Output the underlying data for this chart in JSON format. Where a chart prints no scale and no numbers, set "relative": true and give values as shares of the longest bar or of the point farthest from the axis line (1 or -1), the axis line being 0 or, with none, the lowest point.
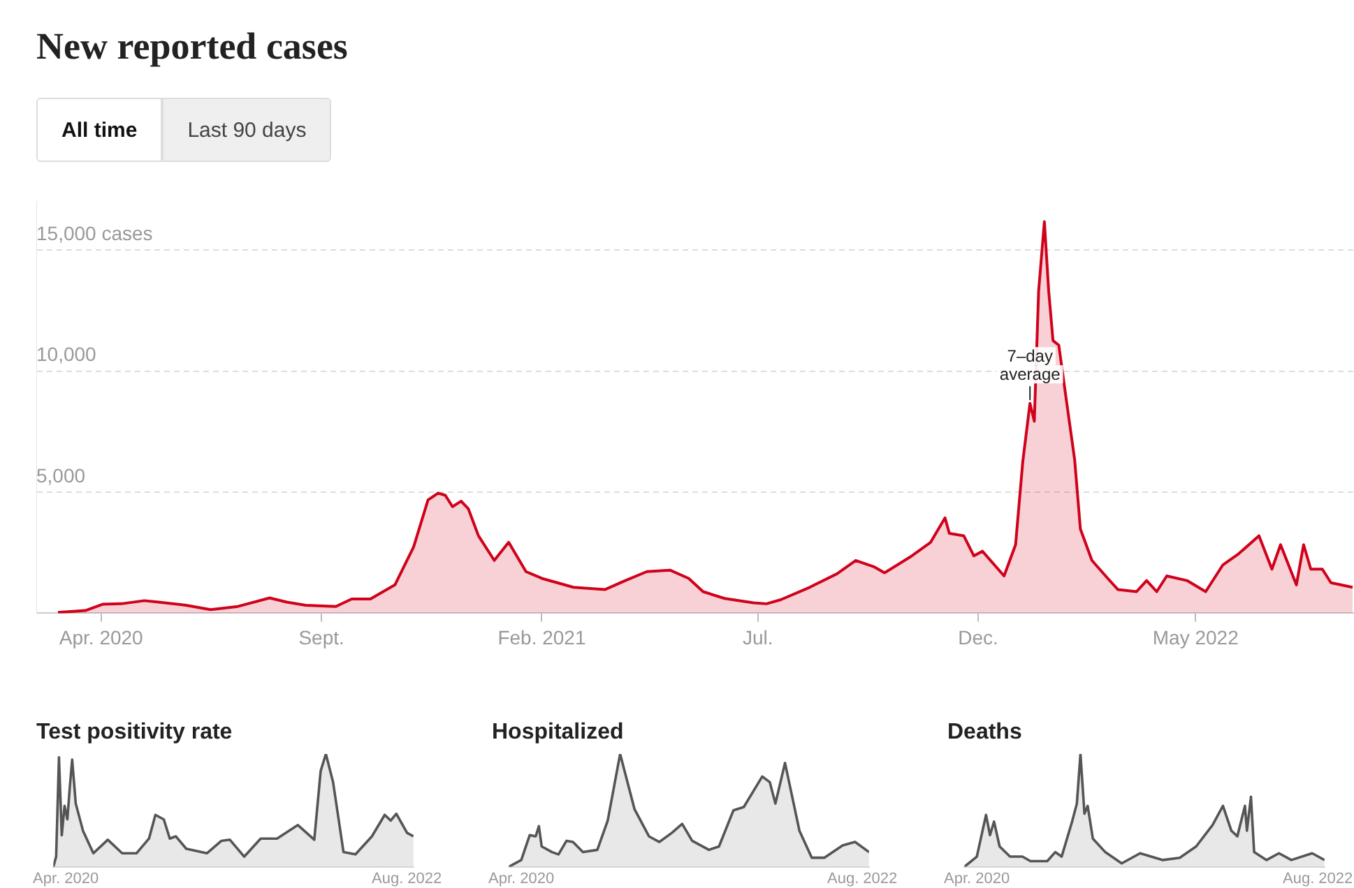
{
  "chart_data": [
    {
      "type": "area",
      "title": "New reported cases",
      "annotations": [
        "All time",
        "Last 90 days",
        {
          "text": "7–day average",
          "x": "2022-01-06",
          "y": 8800
        }
      ],
      "x": [
        "2020-03-02",
        "2020-03-21",
        "2020-04-02",
        "2020-04-15",
        "2020-05-01",
        "2020-05-11",
        "2020-05-30",
        "2020-06-16",
        "2020-07-05",
        "2020-07-27",
        "2020-08-08",
        "2020-08-21",
        "2020-09-11",
        "2020-09-22",
        "2020-10-05",
        "2020-10-22",
        "2020-11-04",
        "2020-11-14",
        "2020-11-21",
        "2020-11-26",
        "2020-12-01",
        "2020-12-07",
        "2020-12-12",
        "2020-12-19",
        "2020-12-30",
        "2021-01-09",
        "2021-01-21",
        "2021-02-01",
        "2021-02-23",
        "2021-03-17",
        "2021-03-31",
        "2021-04-15",
        "2021-05-01",
        "2021-05-14",
        "2021-05-24",
        "2021-06-08",
        "2021-06-28",
        "2021-07-07",
        "2021-07-17",
        "2021-08-06",
        "2021-08-25",
        "2021-09-07",
        "2021-09-20",
        "2021-09-27",
        "2021-10-16",
        "2021-10-29",
        "2021-11-08",
        "2021-11-11",
        "2021-11-21",
        "2021-11-28",
        "2021-12-04",
        "2021-12-19",
        "2021-12-27",
        "2022-01-01",
        "2022-01-06",
        "2022-01-09",
        "2022-01-12",
        "2022-01-16",
        "2022-01-19",
        "2022-01-22",
        "2022-01-26",
        "2022-02-01",
        "2022-02-06",
        "2022-02-10",
        "2022-02-18",
        "2022-03-01",
        "2022-03-08",
        "2022-03-21",
        "2022-03-28",
        "2022-04-04",
        "2022-04-11",
        "2022-04-25",
        "2022-05-08",
        "2022-05-20",
        "2022-05-31",
        "2022-06-14",
        "2022-06-23",
        "2022-06-29",
        "2022-07-10",
        "2022-07-15",
        "2022-07-20",
        "2022-07-28",
        "2022-08-03",
        "2022-08-18"
      ],
      "values": [
        30,
        110,
        370,
        390,
        520,
        460,
        330,
        150,
        280,
        630,
        460,
        330,
        280,
        590,
        590,
        1170,
        2740,
        4680,
        4960,
        4870,
        4400,
        4630,
        4310,
        3200,
        2180,
        2930,
        1720,
        1440,
        1070,
        980,
        1350,
        1720,
        1780,
        1440,
        890,
        610,
        430,
        390,
        560,
        1070,
        1630,
        2180,
        1910,
        1670,
        2370,
        2930,
        3940,
        3300,
        3200,
        2370,
        2560,
        1540,
        2830,
        6260,
        8670,
        7930,
        13300,
        16170,
        13300,
        11260,
        11070,
        8480,
        6350,
        3480,
        2180,
        1440,
        980,
        890,
        1350,
        890,
        1540,
        1350,
        890,
        2000,
        2460,
        3200,
        1820,
        2830,
        1170,
        2830,
        1820,
        1820,
        1260,
        1070
      ],
      "color": "#d0021b",
      "xlim": [
        "2020-02-16",
        "2022-08-19"
      ],
      "xticks": [
        {
          "value": "2020-04-01",
          "label": "Apr. 2020"
        },
        {
          "value": "2020-09-01",
          "label": "Sept."
        },
        {
          "value": "2021-02-01",
          "label": "Feb. 2021"
        },
        {
          "value": "2021-07-01",
          "label": "Jul."
        },
        {
          "value": "2021-12-01",
          "label": "Dec."
        },
        {
          "value": "2022-05-01",
          "label": "May 2022"
        }
      ],
      "ylim": [
        0,
        17000
      ],
      "yticks": [
        {
          "value": 5000,
          "label": "5,000"
        },
        {
          "value": 10000,
          "label": "10,000"
        },
        {
          "value": 15000,
          "label": "15,000 cases"
        }
      ],
      "grid": "y"
    },
    {
      "type": "area",
      "title": "Test positivity rate",
      "relative": true,
      "x": [
        "2020-03-01",
        "2020-03-08",
        "2020-03-15",
        "2020-03-22",
        "2020-03-29",
        "2020-04-05",
        "2020-04-11",
        "2020-04-17",
        "2020-04-26",
        "2020-05-14",
        "2020-06-09",
        "2020-07-15",
        "2020-08-20",
        "2020-09-25",
        "2020-10-26",
        "2020-11-11",
        "2020-12-02",
        "2020-12-17",
        "2021-01-01",
        "2021-01-27",
        "2021-03-20",
        "2021-04-25",
        "2021-05-16",
        "2021-06-21",
        "2021-08-01",
        "2021-09-11",
        "2021-11-02",
        "2021-12-13",
        "2021-12-29",
        "2022-01-11",
        "2022-01-29",
        "2022-02-24",
        "2022-03-26",
        "2022-05-06",
        "2022-06-07",
        "2022-06-22",
        "2022-07-06",
        "2022-08-02",
        "2022-08-18"
      ],
      "values": [
        0,
        0.09,
        0.97,
        0.28,
        0.54,
        0.42,
        0.7,
        0.95,
        0.56,
        0.32,
        0.12,
        0.24,
        0.12,
        0.12,
        0.25,
        0.46,
        0.42,
        0.25,
        0.27,
        0.16,
        0.12,
        0.23,
        0.24,
        0.09,
        0.25,
        0.25,
        0.37,
        0.24,
        0.85,
        1,
        0.75,
        0.13,
        0.11,
        0.27,
        0.46,
        0.41,
        0.47,
        0.3,
        0.27
      ],
      "color": "#555555",
      "xlim": [
        "2020-03-01",
        "2022-08-18"
      ],
      "xticks": [
        {
          "value": "2020-04-01",
          "label": "Apr. 2020"
        },
        {
          "value": "2022-08-01",
          "label": "Aug. 2022"
        }
      ],
      "tick_labels": "x"
    },
    {
      "type": "area",
      "title": "Hospitalized",
      "relative": true,
      "x": [
        "2020-03-01",
        "2020-04-01",
        "2020-04-22",
        "2020-05-07",
        "2020-05-15",
        "2020-05-22",
        "2020-06-17",
        "2020-07-03",
        "2020-07-23",
        "2020-08-08",
        "2020-09-02",
        "2020-10-08",
        "2020-11-03",
        "2020-12-04",
        "2021-01-09",
        "2021-02-14",
        "2021-03-12",
        "2021-04-12",
        "2021-05-08",
        "2021-06-02",
        "2021-07-14",
        "2021-08-08",
        "2021-09-13",
        "2021-10-09",
        "2021-11-24",
        "2021-12-13",
        "2021-12-27",
        "2022-01-20",
        "2022-02-25",
        "2022-03-28",
        "2022-04-28",
        "2022-06-13",
        "2022-07-14",
        "2022-08-18"
      ],
      "values": [
        0,
        0.06,
        0.28,
        0.27,
        0.36,
        0.18,
        0.13,
        0.11,
        0.23,
        0.22,
        0.13,
        0.15,
        0.41,
        1,
        0.51,
        0.27,
        0.22,
        0.3,
        0.38,
        0.23,
        0.15,
        0.18,
        0.5,
        0.53,
        0.8,
        0.75,
        0.56,
        0.92,
        0.32,
        0.08,
        0.08,
        0.19,
        0.22,
        0.13
      ],
      "color": "#555555",
      "xlim": [
        "2020-03-01",
        "2022-08-18"
      ],
      "xticks": [
        {
          "value": "2020-04-01",
          "label": "Apr. 2020"
        },
        {
          "value": "2022-08-01",
          "label": "Aug. 2022"
        }
      ],
      "tick_labels": "x"
    },
    {
      "type": "area",
      "title": "Deaths",
      "relative": true,
      "x": [
        "2020-03-01",
        "2020-04-01",
        "2020-04-24",
        "2020-05-04",
        "2020-05-14",
        "2020-05-28",
        "2020-06-23",
        "2020-07-24",
        "2020-08-13",
        "2020-09-24",
        "2020-10-14",
        "2020-10-30",
        "2020-11-25",
        "2020-12-07",
        "2020-12-16",
        "2020-12-26",
        "2021-01-03",
        "2021-01-16",
        "2021-02-16",
        "2021-03-29",
        "2021-05-14",
        "2021-07-10",
        "2021-08-21",
        "2021-10-01",
        "2021-11-11",
        "2021-12-07",
        "2021-12-28",
        "2022-01-12",
        "2022-01-31",
        "2022-02-05",
        "2022-02-15",
        "2022-02-23",
        "2022-03-26",
        "2022-04-26",
        "2022-05-27",
        "2022-07-18",
        "2022-08-18"
      ],
      "values": [
        0,
        0.09,
        0.46,
        0.28,
        0.4,
        0.18,
        0.09,
        0.09,
        0.05,
        0.05,
        0.13,
        0.09,
        0.4,
        0.56,
        1,
        0.47,
        0.54,
        0.25,
        0.13,
        0.03,
        0.12,
        0.06,
        0.08,
        0.18,
        0.37,
        0.54,
        0.32,
        0.27,
        0.54,
        0.32,
        0.62,
        0.13,
        0.06,
        0.12,
        0.06,
        0.12,
        0.06
      ],
      "color": "#555555",
      "xlim": [
        "2020-03-01",
        "2022-08-18"
      ],
      "xticks": [
        {
          "value": "2020-04-01",
          "label": "Apr. 2020"
        },
        {
          "value": "2022-08-01",
          "label": "Aug. 2022"
        }
      ],
      "tick_labels": "x"
    }
  ]
}
